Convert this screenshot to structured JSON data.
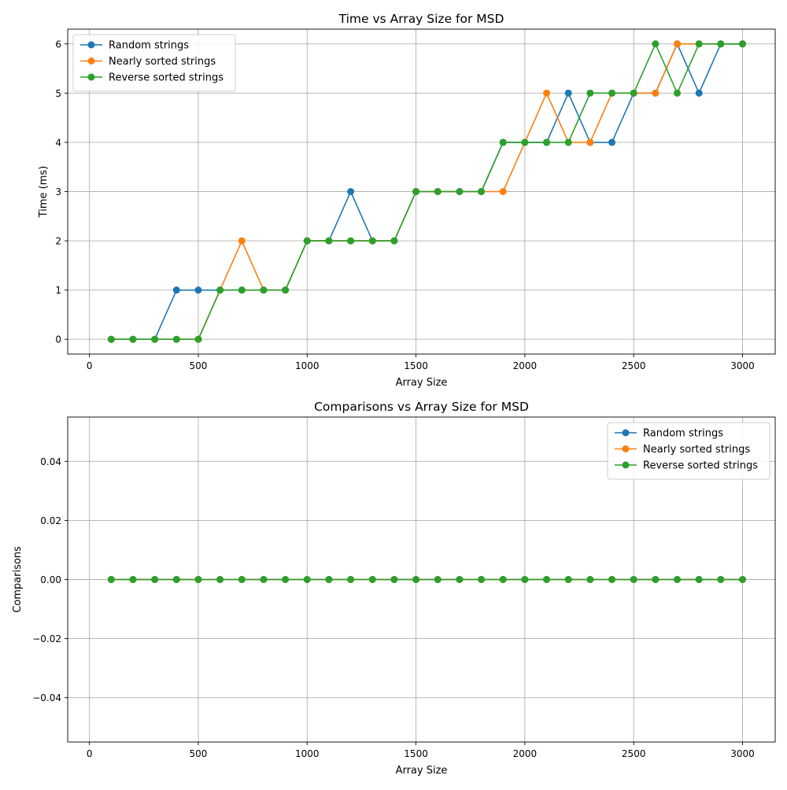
{
  "chart_data": [
    {
      "type": "line",
      "title": "Time vs Array Size for MSD",
      "xlabel": "Array Size",
      "ylabel": "Time (ms)",
      "xlim": [
        -100,
        3150
      ],
      "ylim": [
        -0.3,
        6.3
      ],
      "xticks": [
        0,
        500,
        1000,
        1500,
        2000,
        2500,
        3000
      ],
      "xtick_labels": [
        "0",
        "500",
        "1000",
        "1500",
        "2000",
        "2500",
        "3000"
      ],
      "yticks": [
        0,
        1,
        2,
        3,
        4,
        5,
        6
      ],
      "ytick_labels": [
        "0",
        "1",
        "2",
        "3",
        "4",
        "5",
        "6"
      ],
      "grid": true,
      "legend_position": "upper-left",
      "x": [
        100,
        200,
        300,
        400,
        500,
        600,
        700,
        800,
        900,
        1000,
        1100,
        1200,
        1300,
        1400,
        1500,
        1600,
        1700,
        1800,
        1900,
        2000,
        2100,
        2200,
        2300,
        2400,
        2500,
        2600,
        2700,
        2800,
        2900,
        3000
      ],
      "series": [
        {
          "name": "Random strings",
          "color": "#1f77b4",
          "values": [
            0,
            0,
            0,
            1,
            1,
            1,
            1,
            1,
            1,
            2,
            2,
            3,
            2,
            2,
            3,
            3,
            3,
            3,
            4,
            4,
            4,
            5,
            4,
            4,
            5,
            5,
            6,
            5,
            6,
            6
          ]
        },
        {
          "name": "Nearly sorted strings",
          "color": "#ff7f0e",
          "values": [
            0,
            0,
            0,
            0,
            0,
            1,
            2,
            1,
            1,
            2,
            2,
            2,
            2,
            2,
            3,
            3,
            3,
            3,
            3,
            4,
            5,
            4,
            4,
            5,
            5,
            5,
            6,
            6,
            6,
            6
          ]
        },
        {
          "name": "Reverse sorted strings",
          "color": "#2ca02c",
          "values": [
            0,
            0,
            0,
            0,
            0,
            1,
            1,
            1,
            1,
            2,
            2,
            2,
            2,
            2,
            3,
            3,
            3,
            3,
            4,
            4,
            4,
            4,
            5,
            5,
            5,
            6,
            5,
            6,
            6,
            6
          ]
        }
      ]
    },
    {
      "type": "line",
      "title": "Comparisons vs Array Size for MSD",
      "xlabel": "Array Size",
      "ylabel": "Comparisons",
      "xlim": [
        -100,
        3150
      ],
      "ylim": [
        -0.055,
        0.055
      ],
      "xticks": [
        0,
        500,
        1000,
        1500,
        2000,
        2500,
        3000
      ],
      "xtick_labels": [
        "0",
        "500",
        "1000",
        "1500",
        "2000",
        "2500",
        "3000"
      ],
      "yticks": [
        -0.04,
        -0.02,
        0,
        0.02,
        0.04
      ],
      "ytick_labels": [
        "−0.04",
        "−0.02",
        "0.00",
        "0.02",
        "0.04"
      ],
      "grid": true,
      "legend_position": "upper-right",
      "x": [
        100,
        200,
        300,
        400,
        500,
        600,
        700,
        800,
        900,
        1000,
        1100,
        1200,
        1300,
        1400,
        1500,
        1600,
        1700,
        1800,
        1900,
        2000,
        2100,
        2200,
        2300,
        2400,
        2500,
        2600,
        2700,
        2800,
        2900,
        3000
      ],
      "series": [
        {
          "name": "Random strings",
          "color": "#1f77b4",
          "values": [
            0,
            0,
            0,
            0,
            0,
            0,
            0,
            0,
            0,
            0,
            0,
            0,
            0,
            0,
            0,
            0,
            0,
            0,
            0,
            0,
            0,
            0,
            0,
            0,
            0,
            0,
            0,
            0,
            0,
            0
          ]
        },
        {
          "name": "Nearly sorted strings",
          "color": "#ff7f0e",
          "values": [
            0,
            0,
            0,
            0,
            0,
            0,
            0,
            0,
            0,
            0,
            0,
            0,
            0,
            0,
            0,
            0,
            0,
            0,
            0,
            0,
            0,
            0,
            0,
            0,
            0,
            0,
            0,
            0,
            0,
            0
          ]
        },
        {
          "name": "Reverse sorted strings",
          "color": "#2ca02c",
          "values": [
            0,
            0,
            0,
            0,
            0,
            0,
            0,
            0,
            0,
            0,
            0,
            0,
            0,
            0,
            0,
            0,
            0,
            0,
            0,
            0,
            0,
            0,
            0,
            0,
            0,
            0,
            0,
            0,
            0,
            0
          ]
        }
      ]
    }
  ]
}
